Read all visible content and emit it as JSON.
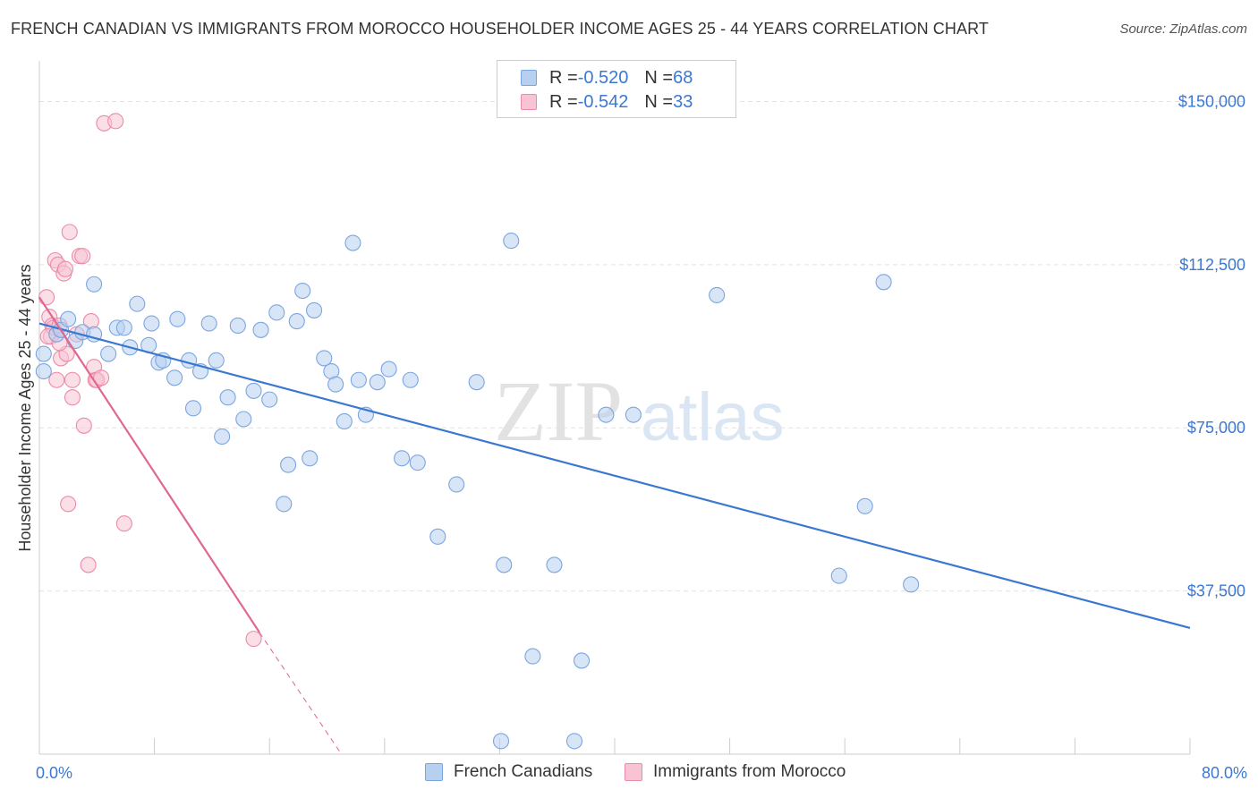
{
  "title": "FRENCH CANADIAN VS IMMIGRANTS FROM MOROCCO HOUSEHOLDER INCOME AGES 25 - 44 YEARS CORRELATION CHART",
  "source": "Source: ZipAtlas.com",
  "watermark": {
    "zip": "ZIP",
    "atlas": "atlas"
  },
  "legend": {
    "rows": [
      {
        "r_label": "R = ",
        "r_value": "-0.520",
        "n_label": "N = ",
        "n_value": "68"
      },
      {
        "r_label": "R = ",
        "r_value": "-0.542",
        "n_label": "N = ",
        "n_value": "33"
      }
    ]
  },
  "bottom_legend": {
    "series_a": "French Canadians",
    "series_b": "Immigrants from Morocco"
  },
  "colors": {
    "blue_fill": "#b8d0f0",
    "blue_stroke": "#7aa6e0",
    "blue_line": "#3a78d0",
    "pink_fill": "#f8c4d4",
    "pink_stroke": "#ec8aaa",
    "pink_line": "#e06890",
    "tick_text": "#3b78d4"
  },
  "chart_data": {
    "type": "scatter",
    "title": "FRENCH CANADIAN VS IMMIGRANTS FROM MOROCCO HOUSEHOLDER INCOME AGES 25 - 44 YEARS CORRELATION CHART",
    "xlabel": "",
    "ylabel": "Householder Income Ages 25 - 44 years",
    "xlim": [
      0,
      80
    ],
    "ylim": [
      0,
      157500
    ],
    "x_tick_labels": [
      "0.0%",
      "80.0%"
    ],
    "y_ticks": [
      37500,
      75000,
      112500,
      150000
    ],
    "y_tick_labels": [
      "$37,500",
      "$75,000",
      "$112,500",
      "$150,000"
    ],
    "grid": true,
    "series": [
      {
        "name": "French Canadians",
        "r": -0.52,
        "n": 68,
        "trend": {
          "x0": 0.0,
          "y0": 99000,
          "x1": 80.0,
          "y1": 29000
        },
        "points": [
          [
            0.3,
            92000
          ],
          [
            1.2,
            96500
          ],
          [
            1.5,
            97500
          ],
          [
            2.0,
            100000
          ],
          [
            2.5,
            95000
          ],
          [
            3.0,
            97000
          ],
          [
            3.8,
            96500
          ],
          [
            3.8,
            108000
          ],
          [
            4.8,
            92000
          ],
          [
            5.4,
            98000
          ],
          [
            5.9,
            98000
          ],
          [
            6.3,
            93500
          ],
          [
            6.8,
            103500
          ],
          [
            7.6,
            94000
          ],
          [
            7.8,
            99000
          ],
          [
            8.3,
            90000
          ],
          [
            8.6,
            90500
          ],
          [
            9.4,
            86500
          ],
          [
            9.6,
            100000
          ],
          [
            10.4,
            90500
          ],
          [
            10.7,
            79500
          ],
          [
            11.2,
            88000
          ],
          [
            11.8,
            99000
          ],
          [
            12.3,
            90500
          ],
          [
            12.7,
            73000
          ],
          [
            13.1,
            82000
          ],
          [
            13.8,
            98500
          ],
          [
            14.2,
            77000
          ],
          [
            14.9,
            83500
          ],
          [
            15.4,
            97500
          ],
          [
            16.0,
            81500
          ],
          [
            16.5,
            101500
          ],
          [
            17.0,
            57500
          ],
          [
            17.3,
            66500
          ],
          [
            17.9,
            99500
          ],
          [
            18.3,
            106500
          ],
          [
            18.8,
            68000
          ],
          [
            19.1,
            102000
          ],
          [
            19.8,
            91000
          ],
          [
            20.3,
            88000
          ],
          [
            20.6,
            85000
          ],
          [
            21.2,
            76500
          ],
          [
            21.8,
            117500
          ],
          [
            22.2,
            86000
          ],
          [
            22.7,
            78000
          ],
          [
            23.5,
            85500
          ],
          [
            24.3,
            88500
          ],
          [
            25.2,
            68000
          ],
          [
            25.8,
            86000
          ],
          [
            26.3,
            67000
          ],
          [
            27.7,
            50000
          ],
          [
            29.0,
            62000
          ],
          [
            30.4,
            85500
          ],
          [
            32.1,
            3000
          ],
          [
            32.3,
            43500
          ],
          [
            32.8,
            118000
          ],
          [
            34.3,
            22500
          ],
          [
            35.8,
            43500
          ],
          [
            37.2,
            3000
          ],
          [
            37.7,
            21500
          ],
          [
            39.4,
            78000
          ],
          [
            41.3,
            78000
          ],
          [
            47.1,
            105500
          ],
          [
            55.6,
            41000
          ],
          [
            57.4,
            57000
          ],
          [
            58.7,
            108500
          ],
          [
            60.6,
            39000
          ],
          [
            0.3,
            88000
          ]
        ]
      },
      {
        "name": "Immigrants from Morocco",
        "r": -0.542,
        "n": 33,
        "trend": {
          "x0": 0.0,
          "y0": 105000,
          "x1": 15.3,
          "y1": 28000
        },
        "trend_dashed": {
          "x0": 15.3,
          "y0": 28000,
          "x1": 21.0,
          "y1": 0
        },
        "points": [
          [
            0.5,
            105000
          ],
          [
            0.7,
            100500
          ],
          [
            0.8,
            96000
          ],
          [
            0.9,
            98500
          ],
          [
            1.0,
            98000
          ],
          [
            1.1,
            113500
          ],
          [
            1.2,
            86000
          ],
          [
            1.3,
            112500
          ],
          [
            1.4,
            98500
          ],
          [
            1.5,
            91000
          ],
          [
            1.7,
            110500
          ],
          [
            1.8,
            111500
          ],
          [
            1.9,
            92000
          ],
          [
            2.0,
            57500
          ],
          [
            2.1,
            120000
          ],
          [
            2.3,
            86000
          ],
          [
            2.3,
            82000
          ],
          [
            2.8,
            114500
          ],
          [
            3.0,
            114500
          ],
          [
            3.1,
            75500
          ],
          [
            3.4,
            43500
          ],
          [
            3.6,
            99500
          ],
          [
            3.8,
            89000
          ],
          [
            3.9,
            86000
          ],
          [
            4.0,
            86000
          ],
          [
            4.3,
            86500
          ],
          [
            4.5,
            145000
          ],
          [
            5.3,
            145500
          ],
          [
            5.9,
            53000
          ],
          [
            14.9,
            26500
          ],
          [
            0.6,
            96000
          ],
          [
            1.4,
            94500
          ],
          [
            2.6,
            96500
          ]
        ]
      }
    ]
  }
}
